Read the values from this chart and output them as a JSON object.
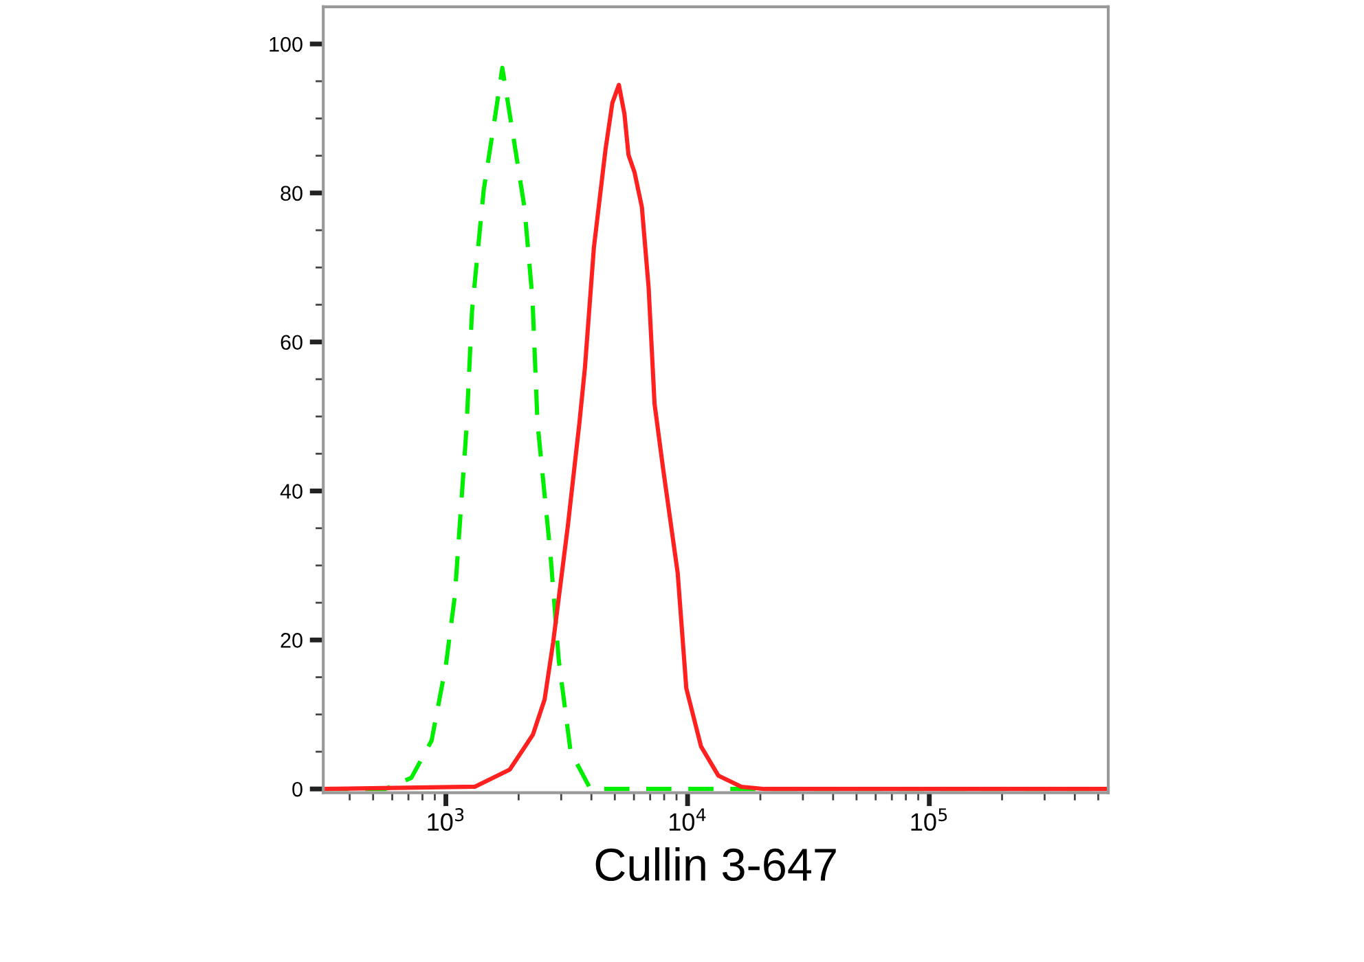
{
  "chart_data": {
    "type": "line",
    "xlabel": "Cullin 3-647",
    "log": "x",
    "grid": false,
    "legend": false,
    "xlim": [
      311,
      550000
    ],
    "ylim": [
      -0.5,
      105
    ],
    "xticks": [
      {
        "value": 400,
        "label": null
      },
      {
        "value": 500,
        "label": null
      },
      {
        "value": 600,
        "label": null
      },
      {
        "value": 700,
        "label": null
      },
      {
        "value": 800,
        "label": null
      },
      {
        "value": 900,
        "label": null
      },
      {
        "value": 1000,
        "label": "10$^{3}$"
      },
      {
        "value": 2000,
        "label": null
      },
      {
        "value": 3000,
        "label": null
      },
      {
        "value": 4000,
        "label": null
      },
      {
        "value": 5000,
        "label": null
      },
      {
        "value": 6000,
        "label": null
      },
      {
        "value": 7000,
        "label": null
      },
      {
        "value": 8000,
        "label": null
      },
      {
        "value": 9000,
        "label": null
      },
      {
        "value": 10000,
        "label": "10$^{4}$"
      },
      {
        "value": 20000,
        "label": null
      },
      {
        "value": 30000,
        "label": null
      },
      {
        "value": 40000,
        "label": null
      },
      {
        "value": 50000,
        "label": null
      },
      {
        "value": 60000,
        "label": null
      },
      {
        "value": 70000,
        "label": null
      },
      {
        "value": 80000,
        "label": null
      },
      {
        "value": 90000,
        "label": null
      },
      {
        "value": 100000,
        "label": "10$^{5}$"
      },
      {
        "value": 200000,
        "label": null
      },
      {
        "value": 300000,
        "label": null
      },
      {
        "value": 400000,
        "label": null
      },
      {
        "value": 500000,
        "label": null
      }
    ],
    "yticks": [
      0,
      {
        "value": 5,
        "label": null
      },
      {
        "value": 10,
        "label": null
      },
      {
        "value": 15,
        "label": null
      },
      20,
      {
        "value": 25,
        "label": null
      },
      {
        "value": 30,
        "label": null
      },
      {
        "value": 35,
        "label": null
      },
      40,
      {
        "value": 45,
        "label": null
      },
      {
        "value": 50,
        "label": null
      },
      {
        "value": 55,
        "label": null
      },
      60,
      {
        "value": 65,
        "label": null
      },
      {
        "value": 70,
        "label": null
      },
      {
        "value": 75,
        "label": null
      },
      80,
      {
        "value": 85,
        "label": null
      },
      {
        "value": 90,
        "label": null
      },
      {
        "value": 95,
        "label": null
      },
      100
    ],
    "series": [
      {
        "color": "#00ee00",
        "line_style": "dashed",
        "x": [
          311,
          562,
          720,
          873,
          1000,
          1089,
          1217,
          1283,
          1434,
          1604,
          1712,
          1888,
          2113,
          2283,
          2393,
          2710,
          2931,
          3282,
          3963,
          550000
        ],
        "values": [
          0,
          0,
          1.5,
          6.5,
          16.6,
          25.9,
          48.4,
          64.2,
          80.4,
          90.6,
          96.8,
          88.2,
          78.1,
          65.7,
          49.2,
          31.4,
          17.3,
          5,
          0,
          0
        ]
      },
      {
        "color": "#ff2020",
        "line_style": "solid",
        "x": [
          311,
          1317,
          1837,
          2292,
          2561,
          2779,
          3193,
          3570,
          3760,
          4097,
          4578,
          4885,
          5197,
          5480,
          5696,
          6030,
          6470,
          6900,
          7300,
          7920,
          9100,
          9880,
          11370,
          13400,
          16700,
          20800,
          550000
        ],
        "values": [
          0,
          0.3,
          2.6,
          7.3,
          12,
          19.7,
          35.2,
          49.2,
          56.5,
          72.7,
          85.9,
          92.1,
          94.5,
          90.6,
          85.1,
          82.8,
          78.1,
          67.3,
          51.7,
          43,
          29,
          13.5,
          5.7,
          1.8,
          0.3,
          0,
          0
        ]
      }
    ]
  }
}
